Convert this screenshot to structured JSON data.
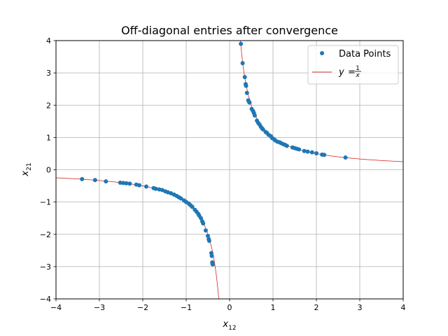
{
  "chart_data": {
    "type": "scatter",
    "title": "Off-diagonal entries after convergence",
    "xlabel": {
      "base": "x",
      "sub": "12"
    },
    "ylabel": {
      "base": "x",
      "sub": "21"
    },
    "xlim": [
      -4,
      4
    ],
    "ylim": [
      -4,
      4
    ],
    "xticks": [
      -4,
      -3,
      -2,
      -1,
      0,
      1,
      2,
      3,
      4
    ],
    "yticks": [
      -4,
      -3,
      -2,
      -1,
      0,
      1,
      2,
      3,
      4
    ],
    "xtick_labels": [
      "−4",
      "−3",
      "−2",
      "−1",
      "0",
      "1",
      "2",
      "3",
      "4"
    ],
    "ytick_labels": [
      "−4",
      "−3",
      "−2",
      "−1",
      "0",
      "1",
      "2",
      "3",
      "4"
    ],
    "grid": true,
    "legend_position": "top-right",
    "series": [
      {
        "name": "Data Points",
        "kind": "scatter",
        "color": "#1f77b4",
        "points": [
          [
            0.26,
            3.9
          ],
          [
            0.3,
            3.3
          ],
          [
            0.35,
            2.87
          ],
          [
            0.37,
            2.65
          ],
          [
            0.38,
            2.6
          ],
          [
            0.4,
            2.38
          ],
          [
            0.43,
            2.15
          ],
          [
            0.45,
            2.1
          ],
          [
            0.46,
            2.08
          ],
          [
            0.51,
            1.88
          ],
          [
            0.54,
            1.82
          ],
          [
            0.56,
            1.76
          ],
          [
            0.58,
            1.68
          ],
          [
            0.63,
            1.52
          ],
          [
            0.66,
            1.45
          ],
          [
            0.69,
            1.4
          ],
          [
            0.72,
            1.33
          ],
          [
            0.75,
            1.28
          ],
          [
            0.77,
            1.25
          ],
          [
            0.83,
            1.17
          ],
          [
            0.86,
            1.14
          ],
          [
            0.9,
            1.08
          ],
          [
            0.95,
            1.04
          ],
          [
            0.98,
            0.98
          ],
          [
            1.02,
            0.95
          ],
          [
            1.05,
            0.91
          ],
          [
            1.1,
            0.87
          ],
          [
            1.15,
            0.85
          ],
          [
            1.19,
            0.82
          ],
          [
            1.24,
            0.79
          ],
          [
            1.28,
            0.77
          ],
          [
            1.32,
            0.74
          ],
          [
            1.45,
            0.69
          ],
          [
            1.5,
            0.67
          ],
          [
            1.55,
            0.65
          ],
          [
            1.6,
            0.63
          ],
          [
            1.72,
            0.58
          ],
          [
            1.8,
            0.56
          ],
          [
            1.9,
            0.54
          ],
          [
            2.0,
            0.51
          ],
          [
            2.13,
            0.47
          ],
          [
            2.18,
            0.46
          ],
          [
            2.67,
            0.38
          ],
          [
            -3.4,
            -0.29
          ],
          [
            -3.1,
            -0.32
          ],
          [
            -2.85,
            -0.36
          ],
          [
            -2.52,
            -0.4
          ],
          [
            -2.45,
            -0.41
          ],
          [
            -2.38,
            -0.42
          ],
          [
            -2.3,
            -0.43
          ],
          [
            -2.15,
            -0.46
          ],
          [
            -2.08,
            -0.48
          ],
          [
            -1.92,
            -0.52
          ],
          [
            -1.75,
            -0.57
          ],
          [
            -1.7,
            -0.59
          ],
          [
            -1.62,
            -0.61
          ],
          [
            -1.55,
            -0.63
          ],
          [
            -1.48,
            -0.67
          ],
          [
            -1.42,
            -0.7
          ],
          [
            -1.35,
            -0.73
          ],
          [
            -1.28,
            -0.77
          ],
          [
            -1.22,
            -0.81
          ],
          [
            -1.17,
            -0.85
          ],
          [
            -1.12,
            -0.89
          ],
          [
            -1.05,
            -0.95
          ],
          [
            -1.0,
            -1.0
          ],
          [
            -0.94,
            -1.05
          ],
          [
            -0.9,
            -1.1
          ],
          [
            -0.86,
            -1.15
          ],
          [
            -0.8,
            -1.24
          ],
          [
            -0.76,
            -1.3
          ],
          [
            -0.72,
            -1.37
          ],
          [
            -0.7,
            -1.42
          ],
          [
            -0.66,
            -1.5
          ],
          [
            -0.63,
            -1.6
          ],
          [
            -0.61,
            -1.66
          ],
          [
            -0.55,
            -1.88
          ],
          [
            -0.5,
            -2.05
          ],
          [
            -0.48,
            -2.15
          ],
          [
            -0.47,
            -2.2
          ],
          [
            -0.42,
            -2.58
          ],
          [
            -0.41,
            -2.67
          ],
          [
            -0.4,
            -2.87
          ],
          [
            -0.39,
            -2.93
          ]
        ]
      },
      {
        "name": "y = 1/x",
        "kind": "line",
        "color": "#d62728",
        "function": "1/x"
      }
    ]
  }
}
